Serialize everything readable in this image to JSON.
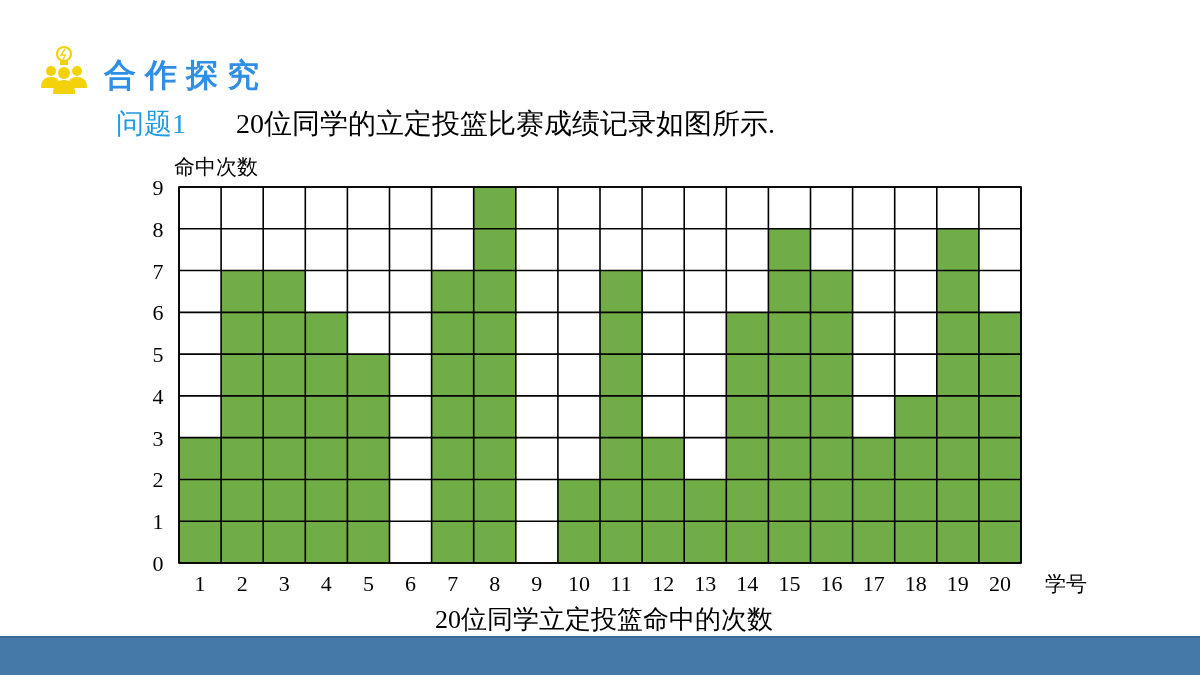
{
  "chart_data": {
    "type": "bar",
    "title": "20位同学立定投篮命中的次数",
    "xlabel": "学号",
    "ylabel": "命中次数",
    "annotations": [
      "合作探究",
      "问题1",
      "20位同学的立定投篮比赛成绩记录如图所示."
    ],
    "categories": [
      "1",
      "2",
      "3",
      "4",
      "5",
      "6",
      "7",
      "8",
      "9",
      "10",
      "11",
      "12",
      "13",
      "14",
      "15",
      "16",
      "17",
      "18",
      "19",
      "20"
    ],
    "values": [
      3,
      7,
      7,
      6,
      5,
      0,
      7,
      9,
      0,
      2,
      7,
      3,
      2,
      6,
      8,
      7,
      3,
      4,
      8,
      6
    ],
    "color": "#70ad47",
    "ylim": [
      0,
      9
    ],
    "yticks": [
      0,
      1,
      2,
      3,
      4,
      5,
      6,
      7,
      8,
      9
    ],
    "grid": true
  }
}
